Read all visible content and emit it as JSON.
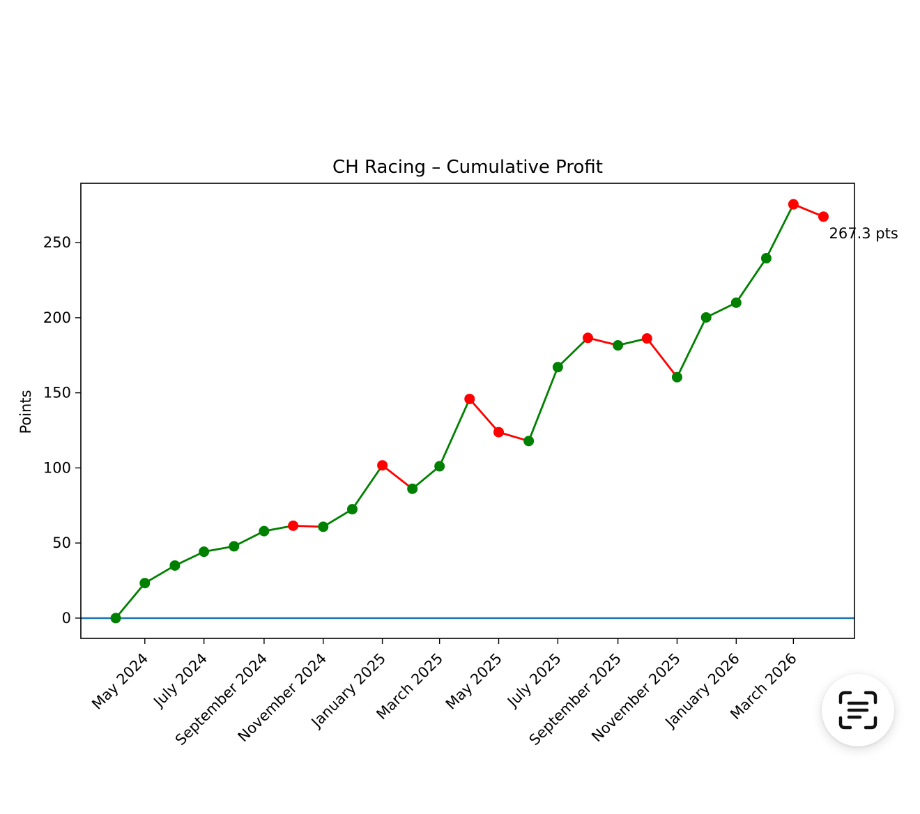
{
  "chart_data": {
    "type": "line",
    "title": "CH Racing – Cumulative Profit",
    "xlabel": "",
    "ylabel": "Points",
    "x": [
      "2024-04",
      "2024-05",
      "2024-06",
      "2024-07",
      "2024-08",
      "2024-09",
      "2024-10",
      "2024-11",
      "2024-12",
      "2025-01",
      "2025-02",
      "2025-03",
      "2025-04",
      "2025-05",
      "2025-06",
      "2025-07",
      "2025-08",
      "2025-09",
      "2025-10",
      "2025-11",
      "2025-12",
      "2026-01",
      "2026-02",
      "2026-03",
      "2026-04"
    ],
    "series": [
      {
        "values": [
          0,
          23.3,
          35.0,
          44.2,
          47.8,
          57.9,
          61.5,
          60.8,
          72.5,
          101.7,
          86.1,
          101.1,
          145.9,
          123.8,
          117.9,
          167.1,
          186.6,
          181.6,
          186.2,
          160.4,
          200.2,
          210.0,
          239.6,
          275.5,
          267.3
        ],
        "point_colors": [
          "#008000",
          "#008000",
          "#008000",
          "#008000",
          "#008000",
          "#008000",
          "#ff0000",
          "#008000",
          "#008000",
          "#ff0000",
          "#008000",
          "#008000",
          "#ff0000",
          "#ff0000",
          "#008000",
          "#008000",
          "#ff0000",
          "#008000",
          "#ff0000",
          "#008000",
          "#008000",
          "#008000",
          "#008000",
          "#ff0000",
          "#ff0000"
        ]
      }
    ],
    "x_ticks": [
      {
        "date": "2024-05",
        "label": "May 2024"
      },
      {
        "date": "2024-07",
        "label": "July 2024"
      },
      {
        "date": "2024-09",
        "label": "September 2024"
      },
      {
        "date": "2024-11",
        "label": "November 2024"
      },
      {
        "date": "2025-01",
        "label": "January 2025"
      },
      {
        "date": "2025-03",
        "label": "March 2025"
      },
      {
        "date": "2025-05",
        "label": "May 2025"
      },
      {
        "date": "2025-07",
        "label": "July 2025"
      },
      {
        "date": "2025-09",
        "label": "September 2025"
      },
      {
        "date": "2025-11",
        "label": "November 2025"
      },
      {
        "date": "2026-01",
        "label": "January 2026"
      },
      {
        "date": "2026-03",
        "label": "March 2026"
      }
    ],
    "y_ticks": [
      0,
      50,
      100,
      150,
      200,
      250
    ],
    "ylim": [
      -13.5,
      289.5
    ],
    "xlim": [
      "2024-02-25",
      "2026-05-03"
    ],
    "reference_line": {
      "y": 0,
      "color": "#1f77b4"
    },
    "annotation": {
      "text": "267.3 pts",
      "at": "last-point"
    },
    "grid": false,
    "legend": "none",
    "up_color": "#008000",
    "down_color": "#ff0000"
  },
  "fab": {
    "icon": "scan-text-icon"
  }
}
